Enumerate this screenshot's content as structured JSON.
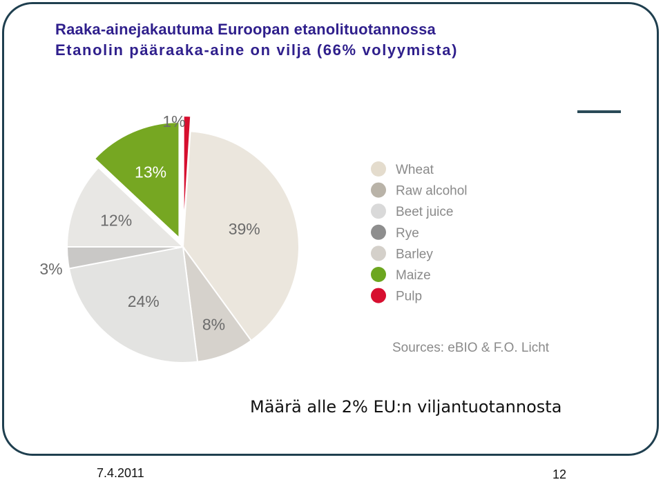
{
  "slide": {
    "title_line1": "Raaka-ainejakautuma Euroopan etanolituotannossa",
    "title_line2": "Etanolin pääraaka-aine on vilja (66% volyymista)",
    "caption": "Määrä alle 2% EU:n viljantuotannosta",
    "date": "7.4.2011",
    "page_number": "12"
  },
  "chart_data": {
    "type": "pie",
    "unit": "%",
    "slices": [
      {
        "label": "Wheat",
        "value": 39,
        "value_label": "39%",
        "color": "#ebe6dd"
      },
      {
        "label": "Raw alcohol",
        "value": 8,
        "value_label": "8%",
        "color": "#d6d2cc"
      },
      {
        "label": "Beet juice",
        "value": 24,
        "value_label": "24%",
        "color": "#e3e3e1"
      },
      {
        "label": "Rye",
        "value": 3,
        "value_label": "3%",
        "color": "#c9c8c6"
      },
      {
        "label": "Barley",
        "value": 12,
        "value_label": "12%",
        "color": "#e8e7e4"
      },
      {
        "label": "Maize",
        "value": 13,
        "value_label": "13%",
        "color": "#76a722"
      },
      {
        "label": "Pulp",
        "value": 1,
        "value_label": "1%",
        "color": "#d60f2f"
      }
    ],
    "legend": [
      {
        "label": "Wheat",
        "color": "#e4dccd"
      },
      {
        "label": "Raw alcohol",
        "color": "#b9b3a8"
      },
      {
        "label": "Beet juice",
        "color": "#d9d9d9"
      },
      {
        "label": "Rye",
        "color": "#8e8e8e"
      },
      {
        "label": "Barley",
        "color": "#d4d0ca"
      },
      {
        "label": "Maize",
        "color": "#6ca61f"
      },
      {
        "label": "Pulp",
        "color": "#d70f30"
      }
    ],
    "legend_position": "right",
    "source": "Sources: eBIO & F.O. Licht"
  }
}
